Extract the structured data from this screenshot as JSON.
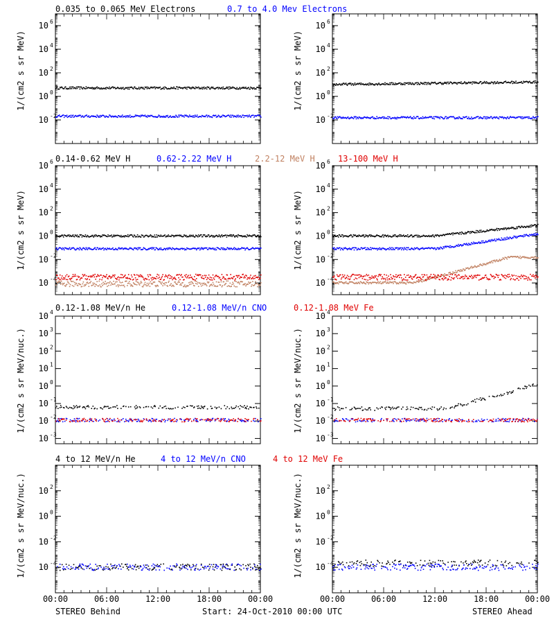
{
  "colors": {
    "black": "#000000",
    "blue": "#0000ff",
    "tan": "#c08060",
    "red": "#e00000"
  },
  "rows": [
    {
      "legend": [
        {
          "text": "0.035 to 0.065 MeV Electrons",
          "color": "#000000"
        },
        {
          "text": "0.7 to 4.0 Mev Electrons",
          "color": "#0000ff"
        }
      ],
      "ylabel": "1/(cm2 s sr MeV)",
      "ticks": [
        {
          "b": "10",
          "e": "-2"
        },
        {
          "b": "10",
          "e": "0"
        },
        {
          "b": "10",
          "e": "2"
        },
        {
          "b": "10",
          "e": "4"
        },
        {
          "b": "10",
          "e": "6"
        }
      ]
    },
    {
      "legend": [
        {
          "text": "0.14-0.62 MeV H",
          "color": "#000000"
        },
        {
          "text": "0.62-2.22 MeV H",
          "color": "#0000ff"
        },
        {
          "text": "2.2-12 MeV H",
          "color": "#c08060"
        },
        {
          "text": "13-100 MeV H",
          "color": "#e00000"
        }
      ],
      "ylabel": "1/(cm2 s sr MeV)",
      "ticks": [
        {
          "b": "10",
          "e": "-4"
        },
        {
          "b": "10",
          "e": "-2"
        },
        {
          "b": "10",
          "e": "0"
        },
        {
          "b": "10",
          "e": "2"
        },
        {
          "b": "10",
          "e": "4"
        },
        {
          "b": "10",
          "e": "6"
        }
      ]
    },
    {
      "legend": [
        {
          "text": "0.12-1.08 MeV/n He",
          "color": "#000000"
        },
        {
          "text": "0.12-1.08 MeV/n CNO",
          "color": "#0000ff"
        },
        {
          "text": "0.12-1.08 MeV Fe",
          "color": "#e00000"
        }
      ],
      "ylabel": "1/(cm2 s sr MeV/nuc.)",
      "ticks": [
        {
          "b": "10",
          "e": "-3"
        },
        {
          "b": "10",
          "e": "-2"
        },
        {
          "b": "10",
          "e": "-1"
        },
        {
          "b": "10",
          "e": "0"
        },
        {
          "b": "10",
          "e": "1"
        },
        {
          "b": "10",
          "e": "2"
        },
        {
          "b": "10",
          "e": "3"
        },
        {
          "b": "10",
          "e": "4"
        }
      ]
    },
    {
      "legend": [
        {
          "text": "4 to 12 MeV/n He",
          "color": "#000000"
        },
        {
          "text": "4 to 12 MeV/n CNO",
          "color": "#0000ff"
        },
        {
          "text": "4 to 12 MeV Fe",
          "color": "#e00000"
        }
      ],
      "ylabel": "1/(cm2 s sr MeV/nuc.)",
      "ticks": [
        {
          "b": "10",
          "e": "-4"
        },
        {
          "b": "10",
          "e": "-2"
        },
        {
          "b": "10",
          "e": "0"
        },
        {
          "b": "10",
          "e": "2"
        }
      ]
    }
  ],
  "xticks": [
    "00:00",
    "06:00",
    "12:00",
    "18:00",
    "00:00"
  ],
  "footer": {
    "left": "STEREO Behind",
    "center": "Start: 24-Oct-2010 00:00 UTC",
    "right": "STEREO Ahead"
  },
  "chart_data": [
    {
      "type": "scatter",
      "xlabel": "",
      "x_range": [
        "00:00",
        "00:00"
      ],
      "ylim": [
        0.0001,
        10000000
      ],
      "yscale": "log",
      "series": [
        {
          "name": "0.035 to 0.065 MeV Electrons",
          "color": "#000000",
          "level": 5
        },
        {
          "name": "0.7 to 4.0 Mev Electrons",
          "color": "#0000ff",
          "level": 0.02
        }
      ]
    },
    {
      "type": "scatter",
      "xlabel": "",
      "x_range": [
        "00:00",
        "00:00"
      ],
      "ylim": [
        0.0001,
        10000000
      ],
      "yscale": "log",
      "series": [
        {
          "name": "0.035 to 0.065 MeV Electrons",
          "color": "#000000",
          "start": 10,
          "end": 16
        },
        {
          "name": "0.7 to 4.0 Mev Electrons",
          "color": "#0000ff",
          "level": 0.015
        }
      ]
    },
    {
      "type": "scatter",
      "xlabel": "",
      "x_range": [
        "00:00",
        "00:00"
      ],
      "ylim": [
        1e-05,
        1000000
      ],
      "yscale": "log",
      "series": [
        {
          "name": "0.14-0.62 MeV H",
          "color": "#000000",
          "level": 1
        },
        {
          "name": "0.62-2.22 MeV H",
          "color": "#0000ff",
          "level": 0.08
        },
        {
          "name": "2.2-12 MeV H",
          "color": "#c08060",
          "level": 8e-05
        },
        {
          "name": "13-100 MeV H",
          "color": "#e00000",
          "level": 0.0003
        }
      ]
    },
    {
      "type": "scatter",
      "xlabel": "",
      "x_range": [
        "00:00",
        "00:00"
      ],
      "ylim": [
        1e-05,
        1000000
      ],
      "yscale": "log",
      "series": [
        {
          "name": "0.14-0.62 MeV H",
          "color": "#000000",
          "start": 1,
          "end": 8
        },
        {
          "name": "0.62-2.22 MeV H",
          "color": "#0000ff",
          "start": 0.08,
          "end": 1.5
        },
        {
          "name": "2.2-12 MeV H",
          "color": "#c08060",
          "start": 0.0001,
          "end": 0.015
        },
        {
          "name": "13-100 MeV H",
          "color": "#e00000",
          "level": 0.0003
        }
      ]
    },
    {
      "type": "scatter",
      "xlabel": "",
      "x_range": [
        "00:00",
        "00:00"
      ],
      "ylim": [
        0.0005,
        10000
      ],
      "yscale": "log",
      "series": [
        {
          "name": "0.12-1.08 MeV/n He",
          "color": "#000000",
          "level": 0.06
        },
        {
          "name": "0.12-1.08 MeV/n CNO",
          "color": "#0000ff",
          "level": 0.011
        },
        {
          "name": "0.12-1.08 MeV Fe",
          "color": "#e00000",
          "level": 0.011
        }
      ]
    },
    {
      "type": "scatter",
      "xlabel": "",
      "x_range": [
        "00:00",
        "00:00"
      ],
      "ylim": [
        0.0005,
        10000
      ],
      "yscale": "log",
      "series": [
        {
          "name": "0.12-1.08 MeV/n He",
          "color": "#000000",
          "start": 0.05,
          "end": 1.2
        },
        {
          "name": "0.12-1.08 MeV/n CNO",
          "color": "#0000ff",
          "level": 0.011
        },
        {
          "name": "0.12-1.08 MeV Fe",
          "color": "#e00000",
          "level": 0.011
        }
      ]
    },
    {
      "type": "scatter",
      "xlabel": "",
      "x_range": [
        "00:00",
        "00:00"
      ],
      "ylim": [
        1e-06,
        10000
      ],
      "yscale": "log",
      "series": [
        {
          "name": "4 to 12 MeV/n He",
          "color": "#000000",
          "level": 0.0001
        },
        {
          "name": "4 to 12 MeV/n CNO",
          "color": "#0000ff",
          "level": 0.0001
        }
      ]
    },
    {
      "type": "scatter",
      "xlabel": "",
      "x_range": [
        "00:00",
        "00:00"
      ],
      "ylim": [
        1e-06,
        10000
      ],
      "yscale": "log",
      "series": [
        {
          "name": "4 to 12 MeV/n He",
          "color": "#000000",
          "level": 0.0002
        },
        {
          "name": "4 to 12 MeV/n CNO",
          "color": "#0000ff",
          "level": 0.0001
        }
      ]
    }
  ]
}
